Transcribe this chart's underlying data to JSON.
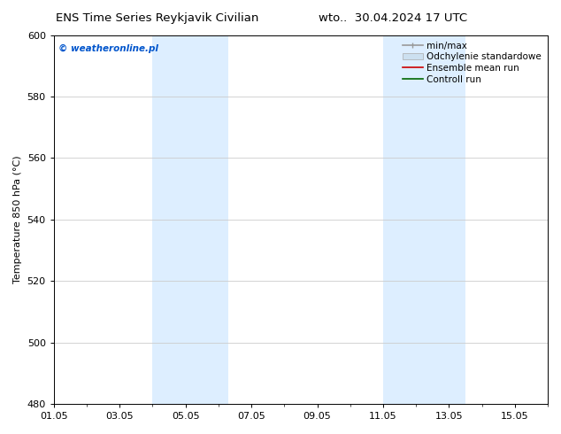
{
  "title_left": "ENS Time Series Reykjavik Civilian",
  "title_right": "wto..  30.04.2024 17 UTC",
  "ylabel": "Temperature 850 hPa (°C)",
  "ylim": [
    480,
    600
  ],
  "yticks": [
    480,
    500,
    520,
    540,
    560,
    580,
    600
  ],
  "xlim": [
    0,
    15
  ],
  "xtick_labels": [
    "01.05",
    "03.05",
    "05.05",
    "07.05",
    "09.05",
    "11.05",
    "13.05",
    "15.05"
  ],
  "xtick_positions": [
    0,
    2,
    4,
    6,
    8,
    10,
    12,
    14
  ],
  "shaded_bands": [
    {
      "x_start": 3.0,
      "x_end": 5.3,
      "color": "#ddeeff"
    },
    {
      "x_start": 10.0,
      "x_end": 12.5,
      "color": "#ddeeff"
    }
  ],
  "watermark_text": "© weatheronline.pl",
  "watermark_color": "#0055cc",
  "legend_items": [
    {
      "label": "min/max",
      "color": "#aaaaaa",
      "type": "minmax"
    },
    {
      "label": "Odchylenie standardowe",
      "color": "#cce0f0",
      "type": "band"
    },
    {
      "label": "Ensemble mean run",
      "color": "#cc0000",
      "type": "line"
    },
    {
      "label": "Controll run",
      "color": "#006600",
      "type": "line"
    }
  ],
  "bg_color": "#ffffff",
  "grid_color": "#cccccc",
  "title_fontsize": 9.5,
  "tick_fontsize": 8,
  "ylabel_fontsize": 8,
  "legend_fontsize": 7.5,
  "watermark_fontsize": 7.5
}
